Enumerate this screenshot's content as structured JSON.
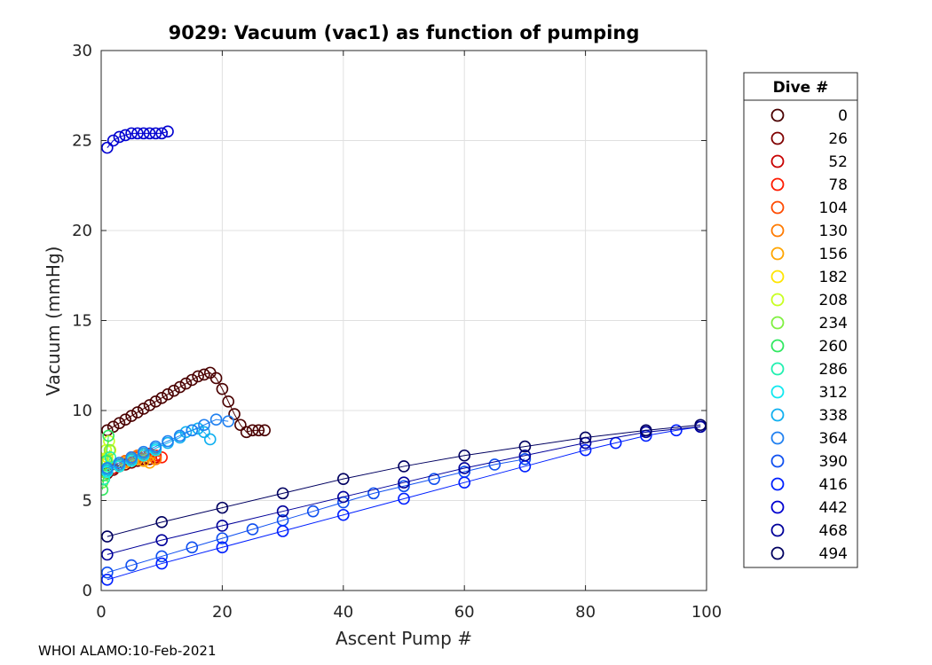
{
  "chart_data": {
    "type": "scatter",
    "title": "9029: Vacuum (vac1) as function of pumping",
    "xlabel": "Ascent Pump #",
    "ylabel": "Vacuum (mmHg)",
    "xlim": [
      0,
      100
    ],
    "ylim": [
      0,
      30
    ],
    "x_ticks": [
      0,
      20,
      40,
      60,
      80,
      100
    ],
    "y_ticks": [
      0,
      5,
      10,
      15,
      20,
      25,
      30
    ],
    "grid": true,
    "legend_title": "Dive #",
    "legend_position": "outside-right",
    "series": [
      {
        "name": "0",
        "color": "#4a0000",
        "x": [
          1,
          2,
          3,
          4,
          5,
          6,
          7,
          8,
          9,
          10,
          11,
          12,
          13,
          14,
          15,
          16,
          17,
          18,
          19,
          20,
          21,
          22,
          23,
          24,
          25,
          26,
          27
        ],
        "y": [
          8.9,
          9.1,
          9.3,
          9.5,
          9.7,
          9.9,
          10.1,
          10.3,
          10.5,
          10.7,
          10.9,
          11.1,
          11.3,
          11.5,
          11.7,
          11.9,
          12.0,
          12.1,
          11.8,
          11.2,
          10.5,
          9.8,
          9.2,
          8.8,
          8.9,
          8.9,
          8.9
        ]
      },
      {
        "name": "26",
        "color": "#800000",
        "x": [
          1,
          2,
          3,
          4,
          5,
          6,
          7,
          8
        ],
        "y": [
          6.5,
          6.7,
          6.9,
          7.0,
          7.1,
          7.2,
          7.3,
          7.3
        ]
      },
      {
        "name": "52",
        "color": "#c80000",
        "x": [
          2,
          3,
          4,
          5,
          6,
          7,
          8,
          9
        ],
        "y": [
          6.8,
          7.0,
          7.2,
          7.3,
          7.4,
          7.5,
          7.5,
          7.4
        ]
      },
      {
        "name": "78",
        "color": "#ff1a00",
        "x": [
          3,
          4,
          5,
          6,
          7,
          8,
          9,
          10
        ],
        "y": [
          7.0,
          7.2,
          7.4,
          7.5,
          7.6,
          7.6,
          7.5,
          7.4
        ]
      },
      {
        "name": "104",
        "color": "#ff4a00",
        "x": [
          3,
          4,
          5,
          6,
          7,
          8,
          9
        ],
        "y": [
          6.9,
          7.1,
          7.3,
          7.4,
          7.5,
          7.5,
          7.3
        ]
      },
      {
        "name": "130",
        "color": "#ff7a00",
        "x": [
          4,
          5,
          6,
          7,
          8,
          9
        ],
        "y": [
          7.2,
          7.4,
          7.5,
          7.6,
          7.5,
          7.3
        ]
      },
      {
        "name": "156",
        "color": "#ffa500",
        "x": [
          3,
          4,
          5,
          6,
          7,
          8
        ],
        "y": [
          6.9,
          7.1,
          7.2,
          7.3,
          7.2,
          7.1
        ]
      },
      {
        "name": "182",
        "color": "#ffe500",
        "x": [
          0.5,
          1,
          1.5
        ],
        "y": [
          7.0,
          7.4,
          7.8
        ]
      },
      {
        "name": "208",
        "color": "#c8ff20",
        "x": [
          0.3,
          0.8,
          1.3
        ],
        "y": [
          7.3,
          7.8,
          8.3
        ]
      },
      {
        "name": "234",
        "color": "#7ff040",
        "x": [
          0.2,
          0.6,
          1.0,
          1.4
        ],
        "y": [
          6.0,
          6.6,
          7.2,
          7.8
        ]
      },
      {
        "name": "260",
        "color": "#30e860",
        "x": [
          0.2,
          0.5,
          0.8,
          1.2
        ],
        "y": [
          5.6,
          6.4,
          7.2,
          8.6
        ]
      },
      {
        "name": "286",
        "color": "#20f0b0",
        "x": [
          0.5,
          1.0,
          1.5
        ],
        "y": [
          6.2,
          6.8,
          7.4
        ]
      },
      {
        "name": "312",
        "color": "#10e8f0",
        "x": [
          1,
          3,
          5,
          7,
          9
        ],
        "y": [
          6.6,
          6.9,
          7.2,
          7.5,
          7.8
        ]
      },
      {
        "name": "338",
        "color": "#10b0f0",
        "x": [
          1,
          3,
          5,
          7,
          9,
          11,
          13,
          14,
          15,
          16,
          17,
          18
        ],
        "y": [
          6.7,
          7.0,
          7.3,
          7.6,
          7.9,
          8.2,
          8.5,
          8.8,
          8.9,
          9.0,
          8.8,
          8.4
        ]
      },
      {
        "name": "364",
        "color": "#2080f0",
        "x": [
          1,
          3,
          5,
          7,
          9,
          11,
          13,
          15,
          17,
          19,
          21
        ],
        "y": [
          6.8,
          7.1,
          7.4,
          7.7,
          8.0,
          8.3,
          8.6,
          8.9,
          9.2,
          9.5,
          9.4
        ]
      },
      {
        "name": "390",
        "color": "#1050f0",
        "x": [
          1,
          5,
          10,
          15,
          20,
          25,
          30,
          35,
          40,
          45,
          50,
          55,
          60,
          65,
          70
        ],
        "y": [
          1.0,
          1.4,
          1.9,
          2.4,
          2.9,
          3.4,
          3.9,
          4.4,
          4.9,
          5.4,
          5.8,
          6.2,
          6.6,
          7.0,
          7.3
        ]
      },
      {
        "name": "416",
        "color": "#0020ff",
        "x": [
          1,
          10,
          20,
          30,
          40,
          50,
          60,
          70,
          80,
          85,
          90,
          95,
          99
        ],
        "y": [
          0.6,
          1.5,
          2.4,
          3.3,
          4.2,
          5.1,
          6.0,
          6.9,
          7.8,
          8.2,
          8.6,
          8.9,
          9.1
        ]
      },
      {
        "name": "442",
        "color": "#0000d0",
        "x": [
          1,
          2,
          3,
          4,
          5,
          6,
          7,
          8,
          9,
          10,
          11
        ],
        "y": [
          24.6,
          25.0,
          25.2,
          25.3,
          25.4,
          25.4,
          25.4,
          25.4,
          25.4,
          25.4,
          25.5
        ]
      },
      {
        "name": "468",
        "color": "#00009a",
        "x": [
          1,
          10,
          20,
          30,
          40,
          50,
          60,
          70,
          80,
          90,
          99
        ],
        "y": [
          2.0,
          2.8,
          3.6,
          4.4,
          5.2,
          6.0,
          6.8,
          7.5,
          8.2,
          8.8,
          9.1
        ]
      },
      {
        "name": "494",
        "color": "#000060",
        "x": [
          1,
          10,
          20,
          30,
          40,
          50,
          60,
          70,
          80,
          90,
          99
        ],
        "y": [
          3.0,
          3.8,
          4.6,
          5.4,
          6.2,
          6.9,
          7.5,
          8.0,
          8.5,
          8.9,
          9.2
        ]
      }
    ]
  },
  "footer": "WHOI ALAMO:10-Feb-2021"
}
